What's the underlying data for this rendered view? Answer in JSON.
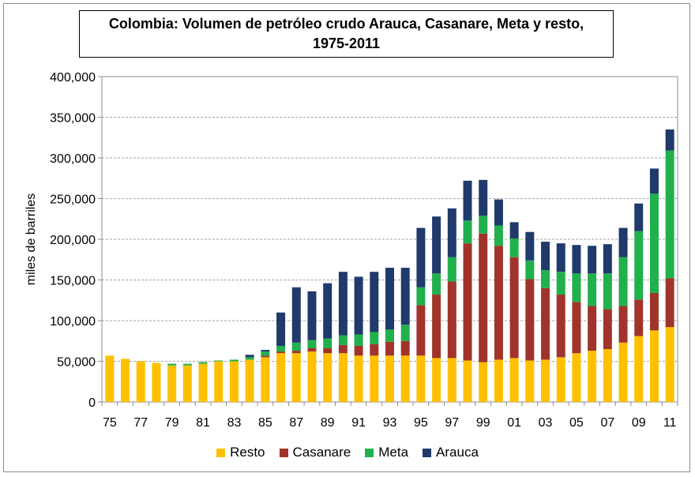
{
  "chart_data": {
    "type": "bar",
    "stacked": true,
    "title_line1": "Colombia: Volumen de petróleo crudo Arauca, Casanare, Meta y resto,",
    "title_line2": "1975-2011",
    "xlabel": "",
    "ylabel": "miles de barriles",
    "ylim": [
      0,
      400000
    ],
    "yticks": [
      "0",
      "50,000",
      "100,000",
      "150,000",
      "200,000",
      "250,000",
      "300,000",
      "350,000",
      "400,000"
    ],
    "grid": "horizontal dashed",
    "legend_position": "bottom",
    "categories": [
      "75",
      "76",
      "77",
      "78",
      "79",
      "80",
      "81",
      "82",
      "83",
      "84",
      "85",
      "86",
      "87",
      "88",
      "89",
      "90",
      "91",
      "92",
      "93",
      "94",
      "95",
      "96",
      "97",
      "98",
      "99",
      "00",
      "01",
      "02",
      "03",
      "04",
      "05",
      "06",
      "07",
      "08",
      "09",
      "10",
      "11"
    ],
    "xtick_labels": [
      "75",
      "77",
      "79",
      "81",
      "83",
      "85",
      "87",
      "89",
      "91",
      "93",
      "95",
      "97",
      "99",
      "01",
      "03",
      "05",
      "07",
      "09",
      "11"
    ],
    "series": [
      {
        "name": "Resto",
        "color": "#ffc000",
        "values": [
          57000,
          53000,
          50000,
          48000,
          45000,
          45000,
          47000,
          50000,
          50000,
          52000,
          55000,
          60000,
          60000,
          62000,
          60000,
          60000,
          57000,
          57000,
          57000,
          57000,
          57000,
          54000,
          54000,
          51000,
          49000,
          52000,
          54000,
          51000,
          52000,
          55000,
          60000,
          63000,
          65000,
          73000,
          81000,
          88000,
          92000
        ]
      },
      {
        "name": "Casanare",
        "color": "#a0342c",
        "values": [
          0,
          0,
          0,
          0,
          0,
          0,
          0,
          0,
          0,
          0,
          2000,
          2000,
          3000,
          4000,
          6000,
          10000,
          12000,
          14000,
          17000,
          18000,
          62000,
          78000,
          94000,
          144000,
          158000,
          140000,
          124000,
          100000,
          88000,
          77000,
          63000,
          55000,
          49000,
          45000,
          45000,
          46000,
          60000
        ]
      },
      {
        "name": "Meta",
        "color": "#20b04c",
        "values": [
          0,
          0,
          0,
          0,
          2000,
          2000,
          2000,
          1000,
          2000,
          3000,
          5000,
          7000,
          10000,
          10000,
          12000,
          12000,
          14000,
          15000,
          15000,
          20000,
          22000,
          26000,
          30000,
          28000,
          22000,
          25000,
          23000,
          23000,
          22000,
          28000,
          35000,
          40000,
          44000,
          60000,
          84000,
          122000,
          157000
        ]
      },
      {
        "name": "Arauca",
        "color": "#1f3a6b",
        "values": [
          0,
          0,
          0,
          0,
          0,
          0,
          0,
          0,
          0,
          3000,
          2000,
          41000,
          68000,
          60000,
          68000,
          78000,
          71000,
          74000,
          76000,
          70000,
          73000,
          70000,
          60000,
          49000,
          44000,
          32000,
          20000,
          35000,
          35000,
          35000,
          35000,
          34000,
          36000,
          36000,
          34000,
          31000,
          26000
        ]
      }
    ]
  }
}
